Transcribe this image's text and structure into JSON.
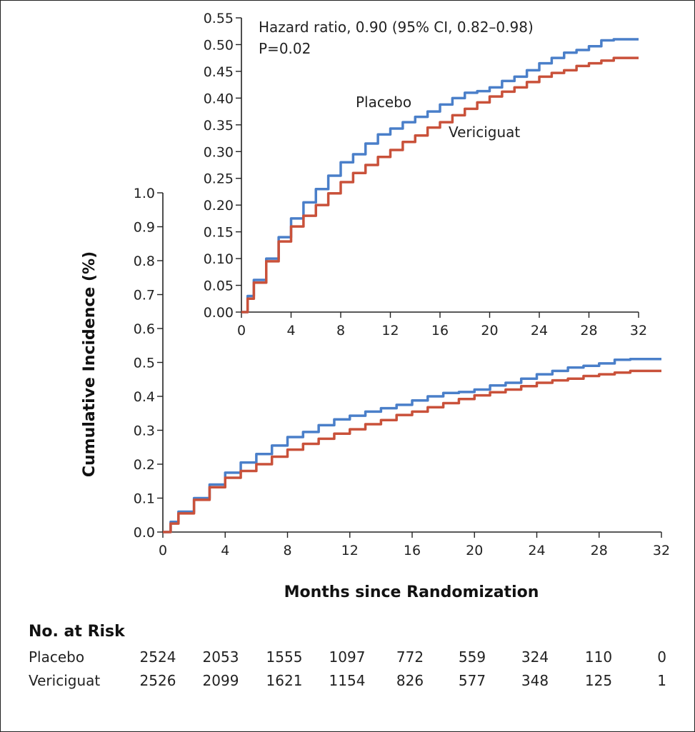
{
  "chart_data": [
    {
      "type": "line",
      "panel": "main",
      "xlabel": "Months since Randomization",
      "ylabel": "Cumulative Incidence (%)",
      "xlim": [
        0,
        32
      ],
      "ylim": [
        0,
        1.0
      ],
      "xticks": [
        "0",
        "4",
        "8",
        "12",
        "16",
        "20",
        "24",
        "28",
        "32"
      ],
      "yticks": [
        "0.0",
        "0.1",
        "0.2",
        "0.3",
        "0.4",
        "0.5",
        "0.6",
        "0.7",
        "0.8",
        "0.9",
        "1.0"
      ],
      "series": [
        {
          "name": "Placebo",
          "color": "#4a7fc9",
          "x": [
            0,
            0.5,
            1,
            2,
            3,
            4,
            5,
            6,
            7,
            8,
            9,
            10,
            11,
            12,
            13,
            14,
            15,
            16,
            17,
            18,
            19,
            20,
            21,
            22,
            23,
            24,
            25,
            26,
            27,
            28,
            29,
            30,
            32
          ],
          "y": [
            0,
            0.03,
            0.06,
            0.1,
            0.14,
            0.175,
            0.205,
            0.23,
            0.255,
            0.28,
            0.295,
            0.315,
            0.332,
            0.343,
            0.355,
            0.365,
            0.375,
            0.388,
            0.4,
            0.41,
            0.413,
            0.42,
            0.432,
            0.44,
            0.452,
            0.465,
            0.475,
            0.485,
            0.49,
            0.497,
            0.508,
            0.51,
            0.51
          ]
        },
        {
          "name": "Vericiguat",
          "color": "#c9513a",
          "x": [
            0,
            0.5,
            1,
            2,
            3,
            4,
            5,
            6,
            7,
            8,
            9,
            10,
            11,
            12,
            13,
            14,
            15,
            16,
            17,
            18,
            19,
            20,
            21,
            22,
            23,
            24,
            25,
            26,
            27,
            28,
            29,
            30,
            32
          ],
          "y": [
            0,
            0.025,
            0.055,
            0.095,
            0.132,
            0.16,
            0.18,
            0.2,
            0.222,
            0.243,
            0.26,
            0.275,
            0.29,
            0.303,
            0.318,
            0.33,
            0.345,
            0.355,
            0.368,
            0.38,
            0.392,
            0.403,
            0.412,
            0.42,
            0.43,
            0.44,
            0.447,
            0.452,
            0.46,
            0.465,
            0.47,
            0.475,
            0.475
          ]
        }
      ]
    },
    {
      "type": "line",
      "panel": "inset",
      "xlim": [
        0,
        32
      ],
      "ylim": [
        0,
        0.55
      ],
      "xticks": [
        "0",
        "4",
        "8",
        "12",
        "16",
        "20",
        "24",
        "28",
        "32"
      ],
      "yticks": [
        "0.00",
        "0.05",
        "0.10",
        "0.15",
        "0.20",
        "0.25",
        "0.30",
        "0.35",
        "0.40",
        "0.45",
        "0.50",
        "0.55"
      ],
      "annotations": [
        "Hazard ratio, 0.90 (95% CI, 0.82–0.98)",
        "P=0.02"
      ],
      "series_labels": [
        "Placebo",
        "Vericiguat"
      ]
    }
  ],
  "risk_table": {
    "title": "No. at Risk",
    "rows": [
      {
        "label": "Placebo",
        "values": [
          "2524",
          "2053",
          "1555",
          "1097",
          "772",
          "559",
          "324",
          "110",
          "0"
        ]
      },
      {
        "label": "Vericiguat",
        "values": [
          "2526",
          "2099",
          "1621",
          "1154",
          "826",
          "577",
          "348",
          "125",
          "1"
        ]
      }
    ]
  }
}
